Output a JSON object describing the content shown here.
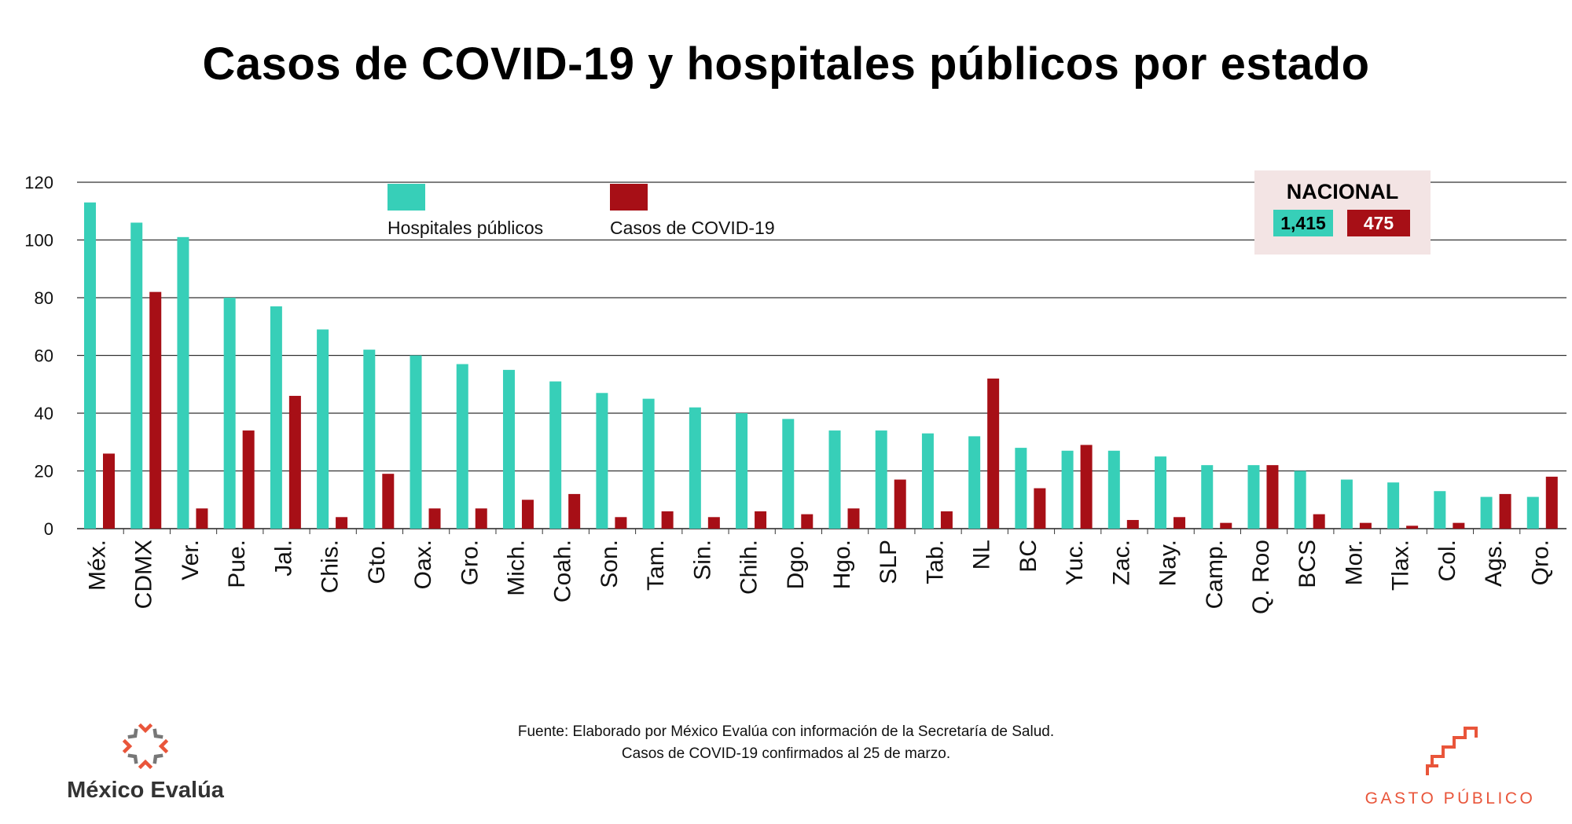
{
  "title": "Casos de COVID-19 y hospitales públicos por estado",
  "nacional": {
    "label": "NACIONAL",
    "hospitales": "1,415",
    "casos": "475"
  },
  "source": {
    "line1": "Fuente: Elaborado por México Evalúa con información de la Secretaría de Salud.",
    "line2": "Casos de COVID-19 confirmados al 25 de marzo."
  },
  "logos": {
    "mexico_evalua": "México Evalúa",
    "gasto_publico": "GASTO PÚBLICO"
  },
  "colors": {
    "hospitales": "#37cfb8",
    "casos": "#a70f16",
    "nacional_bg": "#f3e4e4",
    "gasto_publico": "#e9553a"
  },
  "chart_data": {
    "type": "bar",
    "title": "Casos de COVID-19 y hospitales públicos por estado",
    "xlabel": "",
    "ylabel": "",
    "ylim": [
      0,
      120
    ],
    "yticks": [
      0,
      20,
      40,
      60,
      80,
      100,
      120
    ],
    "grid": true,
    "legend_position": "top",
    "categories": [
      "Méx.",
      "CDMX",
      "Ver.",
      "Pue.",
      "Jal.",
      "Chis.",
      "Gto.",
      "Oax.",
      "Gro.",
      "Mich.",
      "Coah.",
      "Son.",
      "Tam.",
      "Sin.",
      "Chih.",
      "Dgo.",
      "Hgo.",
      "SLP",
      "Tab.",
      "NL",
      "BC",
      "Yuc.",
      "Zac.",
      "Nay.",
      "Camp.",
      "Q. Roo",
      "BCS",
      "Mor.",
      "Tlax.",
      "Col.",
      "Ags.",
      "Qro."
    ],
    "series": [
      {
        "name": "Hospitales públicos",
        "color": "#37cfb8",
        "values": [
          113,
          106,
          101,
          80,
          77,
          69,
          62,
          60,
          57,
          55,
          51,
          47,
          45,
          42,
          40,
          38,
          34,
          34,
          33,
          32,
          28,
          27,
          27,
          25,
          22,
          22,
          20,
          17,
          16,
          13,
          11,
          11
        ]
      },
      {
        "name": "Casos de COVID-19",
        "color": "#a70f16",
        "values": [
          26,
          82,
          7,
          34,
          46,
          4,
          19,
          7,
          7,
          10,
          12,
          4,
          6,
          4,
          6,
          5,
          7,
          17,
          6,
          52,
          14,
          29,
          3,
          4,
          2,
          22,
          5,
          2,
          1,
          2,
          12,
          18
        ]
      }
    ]
  }
}
